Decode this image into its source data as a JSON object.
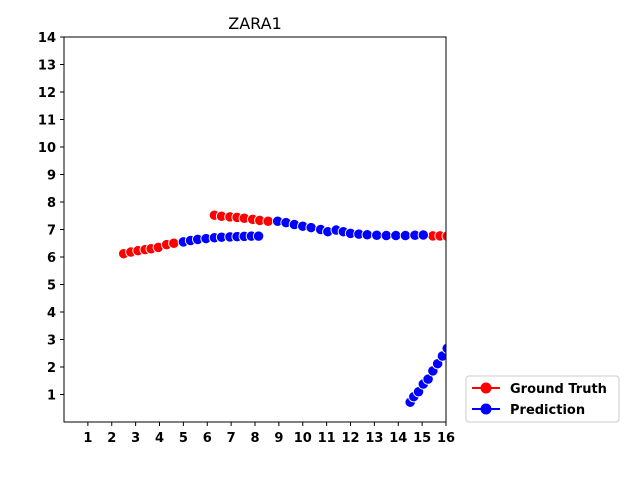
{
  "chart_data": {
    "type": "scatter",
    "title": "ZARA1",
    "xlabel": "",
    "ylabel": "",
    "xlim": [
      0,
      16
    ],
    "ylim": [
      0,
      14
    ],
    "x_ticks": [
      1,
      2,
      3,
      4,
      5,
      6,
      7,
      8,
      9,
      10,
      11,
      12,
      13,
      14,
      15,
      16
    ],
    "y_ticks": [
      1,
      2,
      3,
      4,
      5,
      6,
      7,
      8,
      9,
      10,
      11,
      12,
      13,
      14
    ],
    "legend_position": "bottom-right outside",
    "series": [
      {
        "name": "Ground Truth",
        "color": "#ff0000",
        "points": [
          [
            2.5,
            6.12
          ],
          [
            2.8,
            6.18
          ],
          [
            3.1,
            6.23
          ],
          [
            3.4,
            6.27
          ],
          [
            3.65,
            6.3
          ],
          [
            3.95,
            6.35
          ],
          [
            4.3,
            6.45
          ],
          [
            4.6,
            6.5
          ],
          [
            6.3,
            7.52
          ],
          [
            6.6,
            7.48
          ],
          [
            6.95,
            7.46
          ],
          [
            7.25,
            7.44
          ],
          [
            7.55,
            7.41
          ],
          [
            7.9,
            7.37
          ],
          [
            8.2,
            7.33
          ],
          [
            8.55,
            7.3
          ],
          [
            15.45,
            6.77
          ],
          [
            15.75,
            6.77
          ],
          [
            16.05,
            6.76
          ]
        ]
      },
      {
        "name": "Prediction",
        "color": "#0000ff",
        "points": [
          [
            5.0,
            6.55
          ],
          [
            5.3,
            6.6
          ],
          [
            5.6,
            6.64
          ],
          [
            5.95,
            6.67
          ],
          [
            6.3,
            6.7
          ],
          [
            6.6,
            6.72
          ],
          [
            6.95,
            6.73
          ],
          [
            7.25,
            6.74
          ],
          [
            7.55,
            6.75
          ],
          [
            7.85,
            6.76
          ],
          [
            8.15,
            6.76
          ],
          [
            8.95,
            7.3
          ],
          [
            9.3,
            7.25
          ],
          [
            9.65,
            7.18
          ],
          [
            10.0,
            7.12
          ],
          [
            10.35,
            7.07
          ],
          [
            10.75,
            7.0
          ],
          [
            11.05,
            6.92
          ],
          [
            11.4,
            6.98
          ],
          [
            11.7,
            6.92
          ],
          [
            12.0,
            6.86
          ],
          [
            12.35,
            6.83
          ],
          [
            12.7,
            6.81
          ],
          [
            13.1,
            6.79
          ],
          [
            13.5,
            6.78
          ],
          [
            13.9,
            6.78
          ],
          [
            14.3,
            6.78
          ],
          [
            14.7,
            6.79
          ],
          [
            15.05,
            6.8
          ],
          [
            14.5,
            0.72
          ],
          [
            14.65,
            0.92
          ],
          [
            14.85,
            1.1
          ],
          [
            15.05,
            1.38
          ],
          [
            15.25,
            1.56
          ],
          [
            15.45,
            1.86
          ],
          [
            15.65,
            2.12
          ],
          [
            15.85,
            2.4
          ],
          [
            16.05,
            2.68
          ]
        ]
      }
    ]
  }
}
